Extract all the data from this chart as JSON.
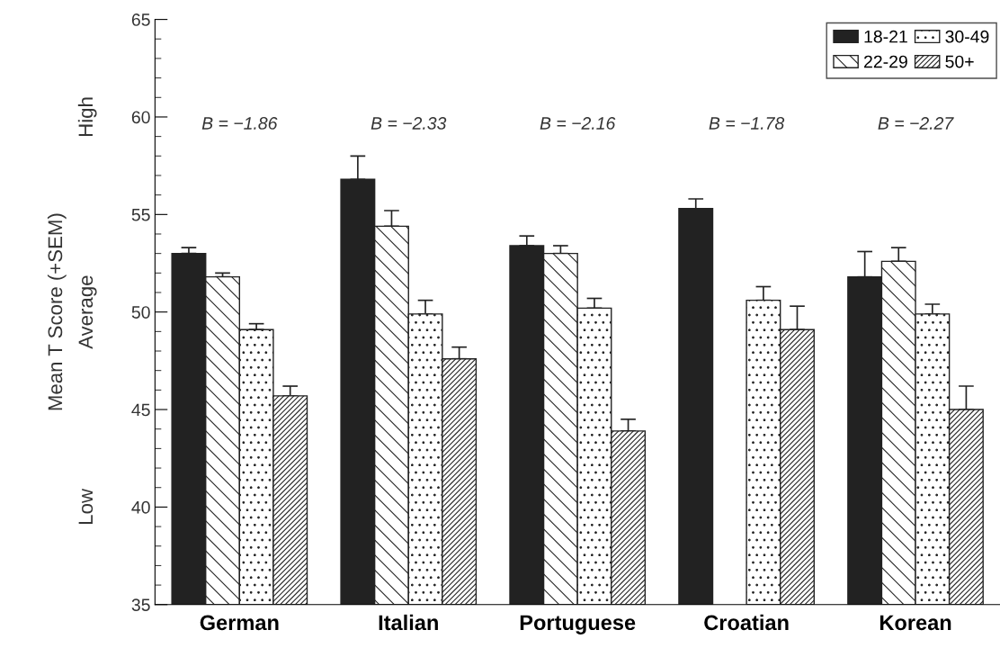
{
  "chart_data": {
    "type": "bar",
    "categories": [
      "German",
      "Italian",
      "Portuguese",
      "Croatian",
      "Korean"
    ],
    "ylabel": "Mean T Score (+SEM)",
    "ylim": [
      35,
      65
    ],
    "yticks": [
      35,
      40,
      45,
      50,
      55,
      60,
      65
    ],
    "legend": "top right",
    "grid": false,
    "series": [
      {
        "name": "18-21",
        "color": "#222222",
        "values": [
          53.0,
          56.8,
          53.4,
          55.3,
          51.8
        ],
        "errors": [
          [
            53.0,
            53.3
          ],
          [
            56.8,
            58.0
          ],
          [
            53.4,
            53.9
          ],
          [
            55.3,
            55.8
          ],
          [
            51.8,
            53.1
          ]
        ]
      },
      {
        "name": "22-29",
        "color": "#222222",
        "values": [
          51.8,
          54.4,
          53.0,
          null,
          52.6
        ],
        "errors": [
          [
            51.8,
            52.0
          ],
          [
            54.4,
            55.2
          ],
          [
            53.0,
            53.4
          ],
          null,
          [
            52.6,
            53.3
          ]
        ]
      },
      {
        "name": "30-49",
        "color": "#222222",
        "values": [
          49.1,
          49.9,
          50.2,
          50.6,
          49.9
        ],
        "errors": [
          [
            49.1,
            49.4
          ],
          [
            49.9,
            50.6
          ],
          [
            50.2,
            50.7
          ],
          [
            50.6,
            51.3
          ],
          [
            49.9,
            50.4
          ]
        ]
      },
      {
        "name": "50+",
        "color": "#222222",
        "values": [
          45.7,
          47.6,
          43.9,
          49.1,
          45.0
        ],
        "errors": [
          [
            45.7,
            46.2
          ],
          [
            47.6,
            48.2
          ],
          [
            43.9,
            44.5
          ],
          [
            49.1,
            50.3
          ],
          [
            45.0,
            46.2
          ]
        ]
      }
    ],
    "annotations": [
      "B = −1.86",
      "B = −2.33",
      "B = −2.16",
      "B = −1.78",
      "B = −2.27",
      "High",
      "Average",
      "Low"
    ]
  }
}
